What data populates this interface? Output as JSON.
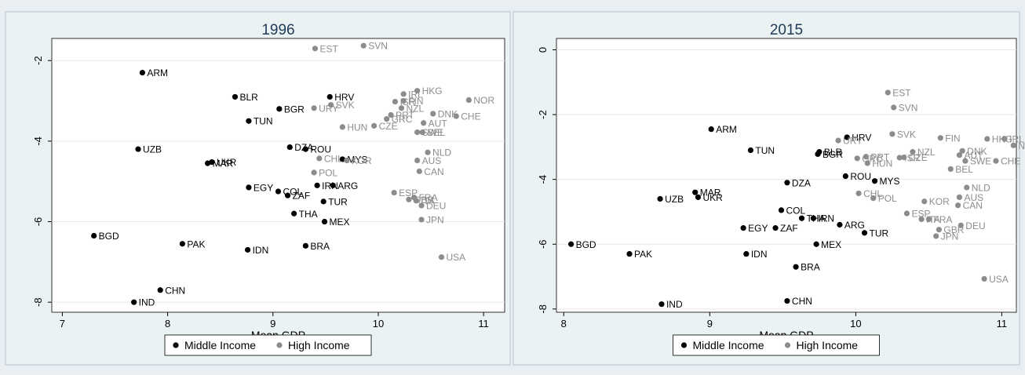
{
  "chart_data": [
    {
      "type": "scatter",
      "title": "1996",
      "xlabel": "Mean GDP",
      "ylabel": "",
      "xlim": [
        6.9,
        11.2
      ],
      "ylim": [
        -8.25,
        -1.45
      ],
      "xticks": [
        7,
        8,
        9,
        10,
        11
      ],
      "yticks": [
        -2,
        -4,
        -6,
        -8
      ],
      "grid": true,
      "legend": {
        "placement": "bottom-center",
        "entries": [
          "Middle Income",
          "High Income"
        ]
      },
      "series": [
        {
          "name": "Middle Income",
          "color": "#000000",
          "points": [
            {
              "label": "ARM",
              "x": 7.76,
              "y": -2.3
            },
            {
              "label": "BLR",
              "x": 8.64,
              "y": -2.9
            },
            {
              "label": "HRV",
              "x": 9.54,
              "y": -2.9
            },
            {
              "label": "BGR",
              "x": 9.06,
              "y": -3.2
            },
            {
              "label": "TUN",
              "x": 8.77,
              "y": -3.5
            },
            {
              "label": "UZB",
              "x": 7.72,
              "y": -4.2
            },
            {
              "label": "DZA",
              "x": 9.16,
              "y": -4.15
            },
            {
              "label": "ROU",
              "x": 9.31,
              "y": -4.2
            },
            {
              "label": "MYS",
              "x": 9.66,
              "y": -4.45
            },
            {
              "label": "UKR",
              "x": 8.42,
              "y": -4.52
            },
            {
              "label": "MAR",
              "x": 8.38,
              "y": -4.55
            },
            {
              "label": "EGY",
              "x": 8.77,
              "y": -5.15
            },
            {
              "label": "COL",
              "x": 9.05,
              "y": -5.25
            },
            {
              "label": "ZAF",
              "x": 9.14,
              "y": -5.35
            },
            {
              "label": "IRN",
              "x": 9.42,
              "y": -5.1
            },
            {
              "label": "ARG",
              "x": 9.57,
              "y": -5.1
            },
            {
              "label": "TUR",
              "x": 9.48,
              "y": -5.5
            },
            {
              "label": "THA",
              "x": 9.2,
              "y": -5.8
            },
            {
              "label": "MEX",
              "x": 9.49,
              "y": -6.0
            },
            {
              "label": "BGD",
              "x": 7.3,
              "y": -6.35
            },
            {
              "label": "PAK",
              "x": 8.14,
              "y": -6.55
            },
            {
              "label": "IDN",
              "x": 8.76,
              "y": -6.7
            },
            {
              "label": "BRA",
              "x": 9.31,
              "y": -6.6
            },
            {
              "label": "CHN",
              "x": 7.93,
              "y": -7.7
            },
            {
              "label": "IND",
              "x": 7.68,
              "y": -8.0
            }
          ]
        },
        {
          "name": "High Income",
          "color": "#8c8c8c",
          "points": [
            {
              "label": "EST",
              "x": 9.4,
              "y": -1.7
            },
            {
              "label": "SVN",
              "x": 9.86,
              "y": -1.63
            },
            {
              "label": "HKG",
              "x": 10.37,
              "y": -2.75
            },
            {
              "label": "IRL",
              "x": 10.24,
              "y": -2.83
            },
            {
              "label": "NOR",
              "x": 10.86,
              "y": -2.98
            },
            {
              "label": "ISR",
              "x": 10.16,
              "y": -3.02
            },
            {
              "label": "FIN",
              "x": 10.24,
              "y": -3.0
            },
            {
              "label": "SVK",
              "x": 9.55,
              "y": -3.1
            },
            {
              "label": "URY",
              "x": 9.39,
              "y": -3.18
            },
            {
              "label": "NZL",
              "x": 10.22,
              "y": -3.18
            },
            {
              "label": "PRT",
              "x": 10.12,
              "y": -3.35
            },
            {
              "label": "GRC",
              "x": 10.08,
              "y": -3.45
            },
            {
              "label": "DNK",
              "x": 10.52,
              "y": -3.32
            },
            {
              "label": "CHE",
              "x": 10.74,
              "y": -3.38
            },
            {
              "label": "AUT",
              "x": 10.43,
              "y": -3.55
            },
            {
              "label": "CZE",
              "x": 9.96,
              "y": -3.62
            },
            {
              "label": "HUN",
              "x": 9.66,
              "y": -3.65
            },
            {
              "label": "SWE",
              "x": 10.37,
              "y": -3.78
            },
            {
              "label": "BEL",
              "x": 10.42,
              "y": -3.78
            },
            {
              "label": "NLD",
              "x": 10.47,
              "y": -4.28
            },
            {
              "label": "CHL",
              "x": 9.44,
              "y": -4.43
            },
            {
              "label": "KOR",
              "x": 9.7,
              "y": -4.48
            },
            {
              "label": "AUS",
              "x": 10.37,
              "y": -4.48
            },
            {
              "label": "POL",
              "x": 9.39,
              "y": -4.78
            },
            {
              "label": "CAN",
              "x": 10.39,
              "y": -4.75
            },
            {
              "label": "ESP",
              "x": 10.15,
              "y": -5.28
            },
            {
              "label": "GBR",
              "x": 10.29,
              "y": -5.45
            },
            {
              "label": "FRA",
              "x": 10.34,
              "y": -5.4
            },
            {
              "label": "ITA",
              "x": 10.36,
              "y": -5.48
            },
            {
              "label": "DEU",
              "x": 10.41,
              "y": -5.6
            },
            {
              "label": "JPN",
              "x": 10.41,
              "y": -5.95
            },
            {
              "label": "USA",
              "x": 10.6,
              "y": -6.88
            }
          ]
        }
      ]
    },
    {
      "type": "scatter",
      "title": "2015",
      "xlabel": "Mean GDP",
      "ylabel": "",
      "xlim": [
        7.95,
        11.1
      ],
      "ylim": [
        -8.1,
        0.35
      ],
      "xticks": [
        8,
        9,
        10,
        11
      ],
      "yticks": [
        0,
        -2,
        -4,
        -6,
        -8
      ],
      "grid": true,
      "legend": {
        "placement": "bottom-center",
        "entries": [
          "Middle Income",
          "High Income"
        ]
      },
      "series": [
        {
          "name": "Middle Income",
          "color": "#000000",
          "points": [
            {
              "label": "ARM",
              "x": 9.01,
              "y": -2.45
            },
            {
              "label": "HRV",
              "x": 9.94,
              "y": -2.7
            },
            {
              "label": "TUN",
              "x": 9.28,
              "y": -3.1
            },
            {
              "label": "BLR",
              "x": 9.75,
              "y": -3.15
            },
            {
              "label": "BGR",
              "x": 9.74,
              "y": -3.22
            },
            {
              "label": "DZA",
              "x": 9.53,
              "y": -4.1
            },
            {
              "label": "ROU",
              "x": 9.93,
              "y": -3.9
            },
            {
              "label": "MYS",
              "x": 10.13,
              "y": -4.05
            },
            {
              "label": "UZB",
              "x": 8.66,
              "y": -4.6
            },
            {
              "label": "MAR",
              "x": 8.9,
              "y": -4.4
            },
            {
              "label": "UKR",
              "x": 8.92,
              "y": -4.55
            },
            {
              "label": "COL",
              "x": 9.49,
              "y": -4.95
            },
            {
              "label": "THA",
              "x": 9.63,
              "y": -5.2
            },
            {
              "label": "IRN",
              "x": 9.71,
              "y": -5.2
            },
            {
              "label": "ARG",
              "x": 9.89,
              "y": -5.4
            },
            {
              "label": "EGY",
              "x": 9.23,
              "y": -5.5
            },
            {
              "label": "ZAF",
              "x": 9.45,
              "y": -5.5
            },
            {
              "label": "TUR",
              "x": 10.06,
              "y": -5.65
            },
            {
              "label": "MEX",
              "x": 9.73,
              "y": -6.0
            },
            {
              "label": "BGD",
              "x": 8.05,
              "y": -6.0
            },
            {
              "label": "PAK",
              "x": 8.45,
              "y": -6.3
            },
            {
              "label": "IDN",
              "x": 9.25,
              "y": -6.3
            },
            {
              "label": "BRA",
              "x": 9.59,
              "y": -6.7
            },
            {
              "label": "IND",
              "x": 8.67,
              "y": -7.85
            },
            {
              "label": "CHN",
              "x": 9.53,
              "y": -7.75
            }
          ]
        },
        {
          "name": "High Income",
          "color": "#8c8c8c",
          "points": [
            {
              "label": "EST",
              "x": 10.22,
              "y": -1.32
            },
            {
              "label": "SVN",
              "x": 10.26,
              "y": -1.78
            },
            {
              "label": "SVK",
              "x": 10.25,
              "y": -2.6
            },
            {
              "label": "FIN",
              "x": 10.58,
              "y": -2.72
            },
            {
              "label": "HKG",
              "x": 10.9,
              "y": -2.75
            },
            {
              "label": "IRL",
              "x": 11.02,
              "y": -2.75
            },
            {
              "label": "NOR",
              "x": 11.08,
              "y": -2.95
            },
            {
              "label": "URY",
              "x": 9.88,
              "y": -2.8
            },
            {
              "label": "NZL",
              "x": 10.39,
              "y": -3.15
            },
            {
              "label": "DNK",
              "x": 10.73,
              "y": -3.12
            },
            {
              "label": "AUT",
              "x": 10.71,
              "y": -3.25
            },
            {
              "label": "PRT",
              "x": 10.07,
              "y": -3.3
            },
            {
              "label": "ISR",
              "x": 10.3,
              "y": -3.33
            },
            {
              "label": "CZE",
              "x": 10.33,
              "y": -3.32
            },
            {
              "label": "GRC",
              "x": 10.01,
              "y": -3.35
            },
            {
              "label": "SWE",
              "x": 10.75,
              "y": -3.43
            },
            {
              "label": "CHE",
              "x": 10.96,
              "y": -3.43
            },
            {
              "label": "HUN",
              "x": 10.08,
              "y": -3.5
            },
            {
              "label": "BEL",
              "x": 10.65,
              "y": -3.68
            },
            {
              "label": "NLD",
              "x": 10.76,
              "y": -4.25
            },
            {
              "label": "CHL",
              "x": 10.02,
              "y": -4.43
            },
            {
              "label": "POL",
              "x": 10.12,
              "y": -4.58
            },
            {
              "label": "AUS",
              "x": 10.71,
              "y": -4.55
            },
            {
              "label": "KOR",
              "x": 10.47,
              "y": -4.68
            },
            {
              "label": "CAN",
              "x": 10.7,
              "y": -4.8
            },
            {
              "label": "ESP",
              "x": 10.35,
              "y": -5.05
            },
            {
              "label": "ITA",
              "x": 10.45,
              "y": -5.23
            },
            {
              "label": "FRA",
              "x": 10.5,
              "y": -5.23
            },
            {
              "label": "DEU",
              "x": 10.72,
              "y": -5.42
            },
            {
              "label": "GBR",
              "x": 10.57,
              "y": -5.55
            },
            {
              "label": "JPN",
              "x": 10.55,
              "y": -5.75
            },
            {
              "label": "USA",
              "x": 10.88,
              "y": -7.07
            }
          ]
        }
      ]
    }
  ]
}
